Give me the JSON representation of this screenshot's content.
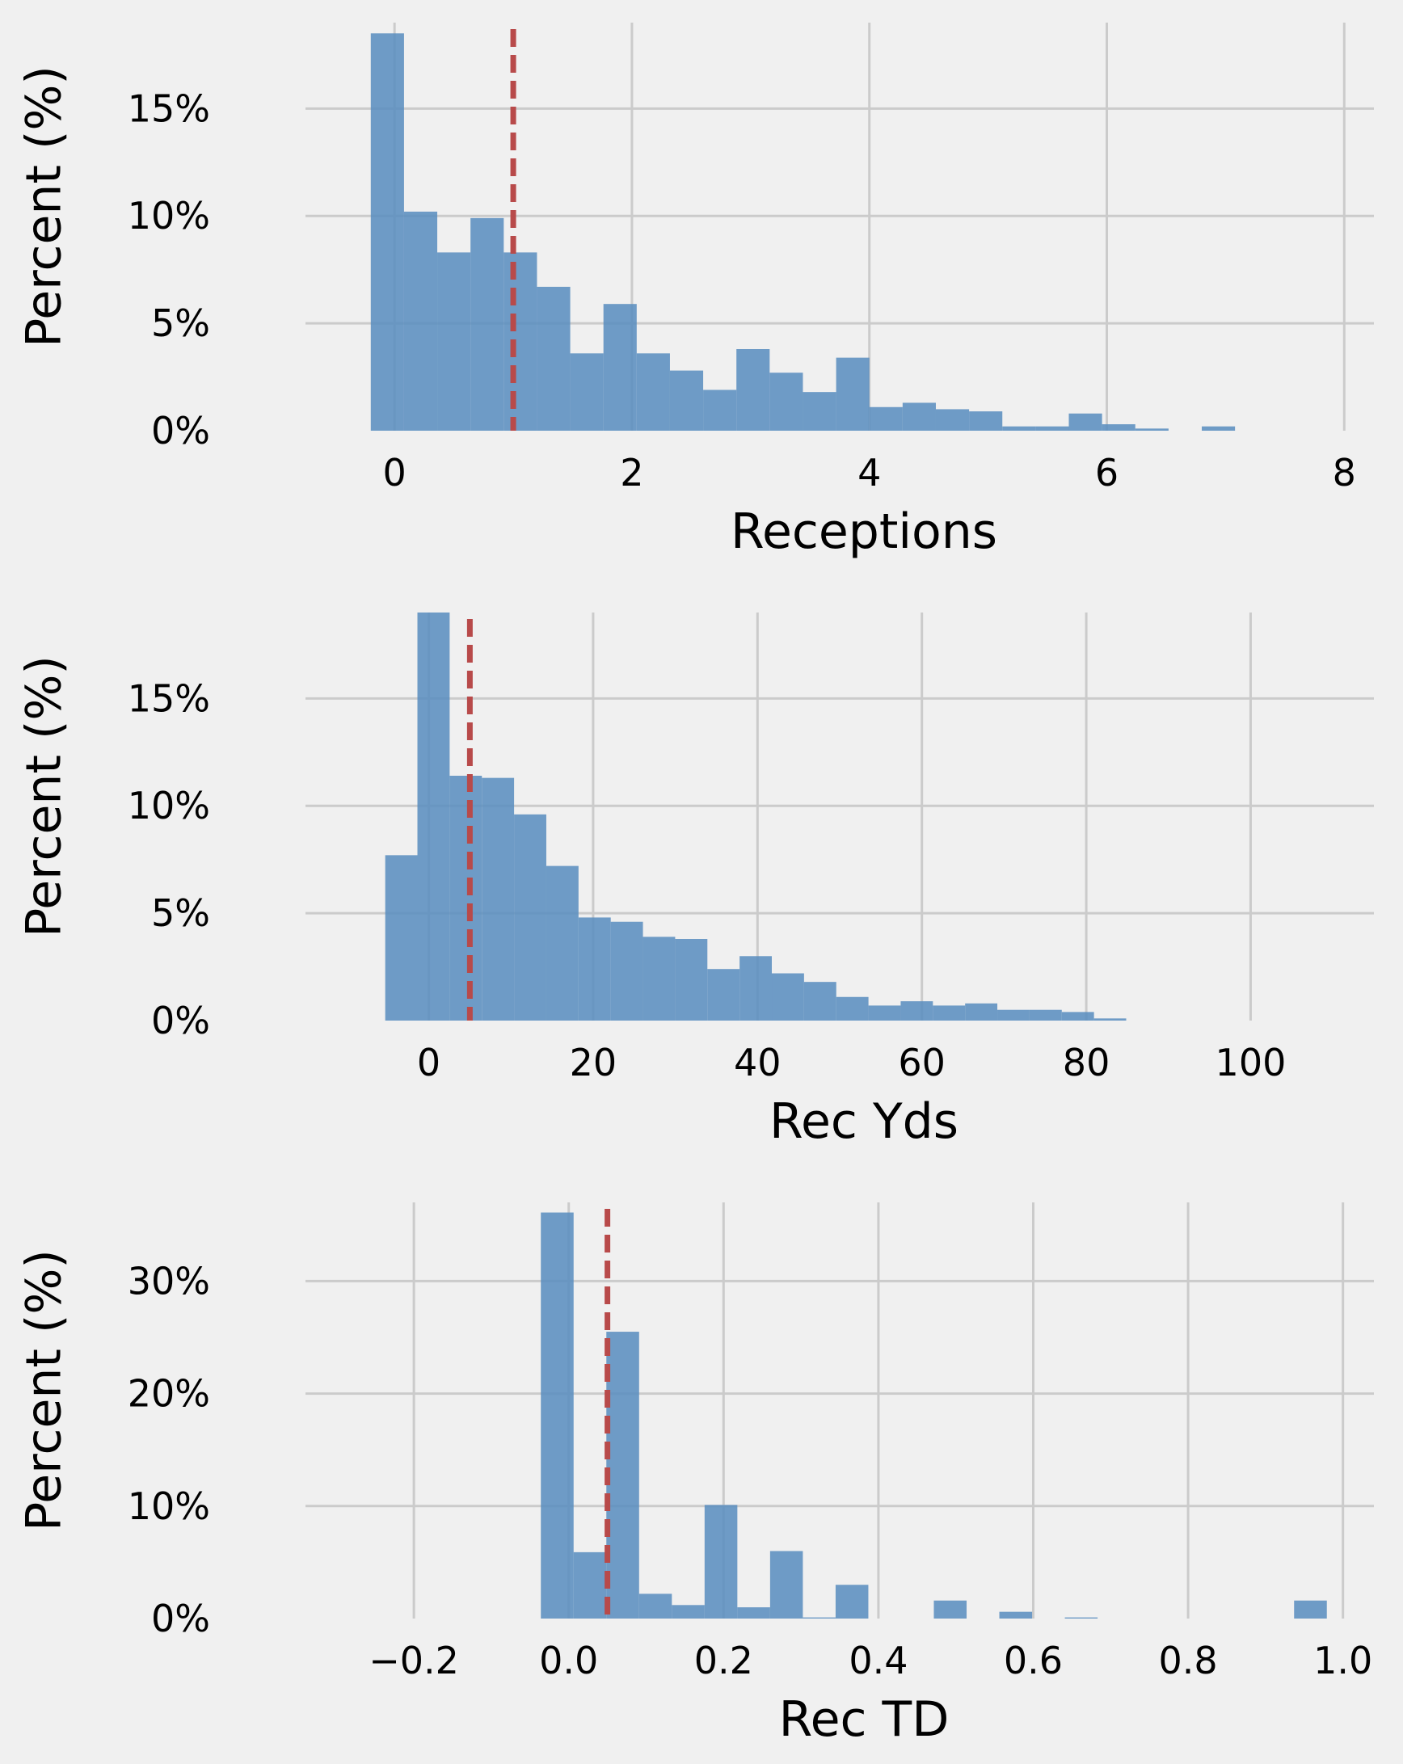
{
  "colors": {
    "background": "#f0f0f0",
    "bar": "#5b8ebf",
    "mean_line": "#b84a4a",
    "grid": "#cbcbcb"
  },
  "chart_data": [
    {
      "type": "bar",
      "title": "",
      "xlabel": "Receptions",
      "ylabel": "Percent (%)",
      "xlim": [
        -0.75,
        8.25
      ],
      "ylim": [
        0,
        19
      ],
      "xticks": [
        0,
        2,
        4,
        6,
        8
      ],
      "xtick_labels": [
        "0",
        "2",
        "4",
        "6",
        "8"
      ],
      "yticks": [
        0,
        5,
        10,
        15
      ],
      "ytick_labels": [
        "0%",
        "5%",
        "10%",
        "15%"
      ],
      "grid": true,
      "mean_line_x": 1.0,
      "bin_start": -0.2,
      "bin_width": 0.28,
      "values": [
        18.5,
        10.2,
        8.3,
        9.9,
        8.3,
        6.7,
        3.6,
        5.9,
        3.6,
        2.8,
        1.9,
        3.8,
        2.7,
        1.8,
        3.4,
        1.1,
        1.3,
        1.0,
        0.9,
        0.2,
        0.2,
        0.8,
        0.3,
        0.1,
        0.0,
        0.2,
        0.0,
        0.0,
        0.0,
        0.0
      ]
    },
    {
      "type": "bar",
      "title": "",
      "xlabel": "Rec Yds",
      "ylabel": "Percent (%)",
      "xlim": [
        -15,
        115
      ],
      "ylim": [
        0,
        19
      ],
      "xticks": [
        0,
        20,
        40,
        60,
        80,
        100
      ],
      "xtick_labels": [
        "0",
        "20",
        "40",
        "60",
        "80",
        "100"
      ],
      "yticks": [
        0,
        5,
        10,
        15
      ],
      "ytick_labels": [
        "0%",
        "5%",
        "10%",
        "15%"
      ],
      "grid": true,
      "mean_line_x": 5.0,
      "bin_start": -5.3,
      "bin_width": 3.92,
      "values": [
        7.7,
        19.0,
        11.4,
        11.3,
        9.6,
        7.2,
        4.8,
        4.6,
        3.9,
        3.8,
        2.4,
        3.0,
        2.2,
        1.8,
        1.1,
        0.7,
        0.9,
        0.7,
        0.8,
        0.5,
        0.5,
        0.4,
        0.1,
        0.0,
        0.0,
        0.0,
        0.0,
        0.0,
        0.0,
        0.0
      ]
    },
    {
      "type": "bar",
      "title": "",
      "xlabel": "Rec TD",
      "ylabel": "Percent (%)",
      "xlim": [
        -0.34,
        1.04
      ],
      "ylim": [
        0,
        37
      ],
      "xticks": [
        -0.2,
        0.0,
        0.2,
        0.4,
        0.6,
        0.8,
        1.0
      ],
      "xtick_labels": [
        "−0.2",
        "0.0",
        "0.2",
        "0.4",
        "0.6",
        "0.8",
        "1.0"
      ],
      "yticks": [
        0,
        10,
        20,
        30
      ],
      "ytick_labels": [
        "0%",
        "10%",
        "20%",
        "30%"
      ],
      "grid": true,
      "mean_line_x": 0.05,
      "bin_start": -0.036,
      "bin_width": 0.0423,
      "values": [
        36.1,
        5.9,
        25.5,
        2.2,
        1.2,
        10.1,
        1.0,
        6.0,
        0.1,
        3.0,
        0.0,
        0.0,
        1.6,
        0.0,
        0.6,
        0.0,
        0.1,
        0.0,
        0.0,
        0.0,
        0.0,
        0.0,
        0.0,
        1.6
      ]
    }
  ]
}
